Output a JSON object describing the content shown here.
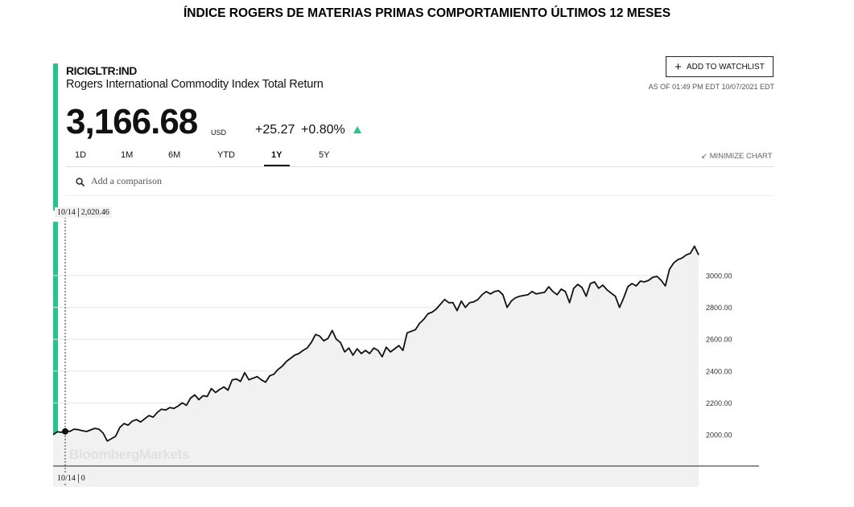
{
  "page_title": "ÍNDICE ROGERS DE  MATERIAS PRIMAS COMPORTAMIENTO ÚLTIMOS 12 MESES",
  "quote": {
    "ticker": "RICIGLTR:IND",
    "name": "Rogers International Commodity Index Total Return",
    "price": "3,166.68",
    "currency": "USD",
    "change": "+25.27",
    "change_pct": "+0.80%",
    "as_of": "AS OF 01:49 PM EDT 10/07/2021 EDT",
    "up_color": "#27c48f"
  },
  "actions": {
    "watchlist_label": "ADD TO WATCHLIST",
    "minimize_label": "MINIMIZE CHART"
  },
  "tabs": [
    "1D",
    "1M",
    "6M",
    "YTD",
    "1Y",
    "5Y"
  ],
  "active_tab": "1Y",
  "comparison": {
    "placeholder": "Add a comparison"
  },
  "hover": {
    "date": "10/14",
    "value": "2,020.46"
  },
  "bottom": {
    "date": "10/14",
    "value": "0"
  },
  "watermark": "BloombergMarkets",
  "chart_data": {
    "type": "area",
    "y_ticks": [
      "3000.00",
      "2800.00",
      "2600.00",
      "2400.00",
      "2200.00",
      "2000.00"
    ],
    "y_tick_values": [
      3000,
      2800,
      2600,
      2400,
      2200,
      2000
    ],
    "ylim": [
      1800,
      3200
    ],
    "grid": true,
    "series": [
      {
        "values": [
          2000,
          2018,
          2015,
          2027,
          2020,
          2035,
          2032,
          2025,
          2020,
          2030,
          2040,
          2035,
          2010,
          1960,
          1975,
          1990,
          2045,
          2070,
          2060,
          2085,
          2095,
          2080,
          2100,
          2120,
          2110,
          2140,
          2160,
          2155,
          2170,
          2165,
          2180,
          2200,
          2185,
          2230,
          2250,
          2220,
          2245,
          2240,
          2290,
          2265,
          2285,
          2300,
          2280,
          2345,
          2350,
          2335,
          2390,
          2345,
          2355,
          2365,
          2345,
          2330,
          2370,
          2380,
          2410,
          2430,
          2460,
          2480,
          2500,
          2510,
          2530,
          2545,
          2580,
          2630,
          2620,
          2590,
          2605,
          2655,
          2600,
          2580,
          2520,
          2545,
          2500,
          2540,
          2510,
          2530,
          2510,
          2545,
          2530,
          2490,
          2550,
          2520,
          2540,
          2560,
          2530,
          2640,
          2650,
          2660,
          2700,
          2725,
          2760,
          2770,
          2790,
          2820,
          2850,
          2830,
          2830,
          2780,
          2840,
          2800,
          2830,
          2835,
          2850,
          2880,
          2900,
          2885,
          2900,
          2905,
          2880,
          2800,
          2840,
          2860,
          2870,
          2875,
          2880,
          2900,
          2885,
          2890,
          2895,
          2930,
          2900,
          2880,
          2915,
          2900,
          2830,
          2920,
          2945,
          2925,
          2870,
          2950,
          2960,
          2920,
          2940,
          2910,
          2890,
          2870,
          2800,
          2860,
          2930,
          2950,
          2935,
          2965,
          2960,
          2970,
          2990,
          2995,
          2970,
          2935,
          3040,
          3080,
          3100,
          3110,
          3130,
          3140,
          3185,
          3130
        ]
      }
    ]
  }
}
